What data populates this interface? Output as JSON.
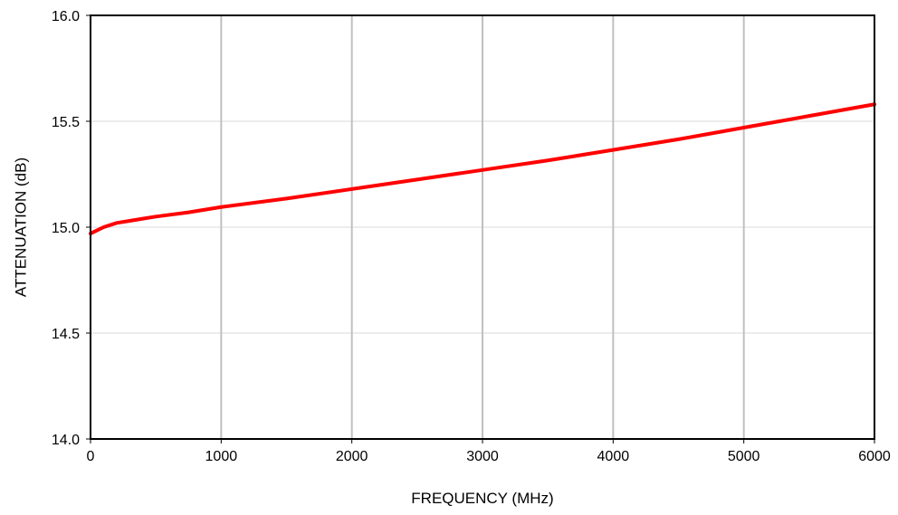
{
  "chart_data": {
    "type": "line",
    "title": "",
    "xlabel": "FREQUENCY (MHz)",
    "ylabel": "ATTENUATION (dB)",
    "xlim": [
      0,
      6000
    ],
    "ylim": [
      14.0,
      16.0
    ],
    "x_ticks": [
      0,
      1000,
      2000,
      3000,
      4000,
      5000,
      6000
    ],
    "x_tick_labels": [
      "0",
      "1000",
      "2000",
      "3000",
      "4000",
      "5000",
      "6000"
    ],
    "y_ticks": [
      14.0,
      14.5,
      15.0,
      15.5,
      16.0
    ],
    "y_tick_labels": [
      "14.0",
      "14.5",
      "15.0",
      "15.5",
      "16.0"
    ],
    "grid": {
      "vertical": true,
      "horizontal": true
    },
    "legend": "none",
    "colors": {
      "series": "#ff0000",
      "vertical_grid": "#c0c0c0",
      "horizontal_grid": "#d9d9d9",
      "axes": "#000000"
    },
    "series": [
      {
        "x": [
          0,
          100,
          200,
          300,
          400,
          500,
          750,
          1000,
          1500,
          2000,
          2500,
          3000,
          3500,
          4000,
          4500,
          5000,
          5500,
          6000
        ],
        "y": [
          14.97,
          15.0,
          15.02,
          15.03,
          15.04,
          15.05,
          15.07,
          15.095,
          15.135,
          15.18,
          15.225,
          15.27,
          15.315,
          15.365,
          15.415,
          15.47,
          15.525,
          15.58
        ]
      }
    ]
  }
}
